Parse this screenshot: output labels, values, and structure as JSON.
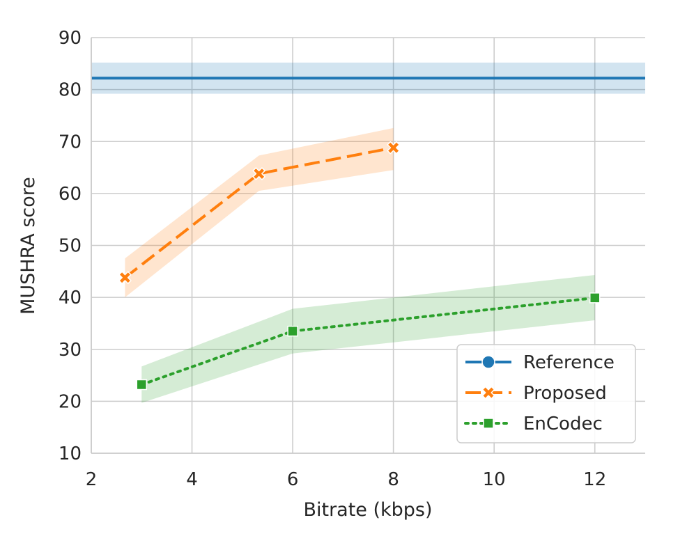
{
  "chart_data": {
    "type": "line",
    "xlabel": "Bitrate (kbps)",
    "ylabel": "MUSHRA score",
    "xlim": [
      2,
      13
    ],
    "ylim": [
      10,
      90
    ],
    "xticks": [
      2,
      4,
      6,
      8,
      10,
      12
    ],
    "yticks": [
      10,
      20,
      30,
      40,
      50,
      60,
      70,
      80,
      90
    ],
    "grid": true,
    "legend_position": "lower-right",
    "series": [
      {
        "name": "Reference",
        "color": "#1f77b4",
        "line_style": "solid",
        "marker": "circle",
        "x": [
          2,
          13
        ],
        "y": [
          82.2,
          82.2
        ],
        "ci_low": [
          79.2,
          79.2
        ],
        "ci_high": [
          85.2,
          85.2
        ],
        "note_horizontal": true
      },
      {
        "name": "Proposed",
        "color": "#ff7f0e",
        "line_style": "dashed",
        "marker": "x",
        "x": [
          2.67,
          5.33,
          8
        ],
        "y": [
          43.8,
          63.8,
          68.8
        ],
        "ci_low": [
          40.0,
          60.5,
          64.5
        ],
        "ci_high": [
          47.5,
          67.3,
          72.6
        ]
      },
      {
        "name": "EnCodec",
        "color": "#2ca02c",
        "line_style": "dotted",
        "marker": "square",
        "x": [
          3,
          6,
          12
        ],
        "y": [
          23.2,
          33.5,
          39.9
        ],
        "ci_low": [
          19.7,
          29.2,
          35.6
        ],
        "ci_high": [
          26.7,
          37.8,
          44.3
        ]
      }
    ]
  }
}
